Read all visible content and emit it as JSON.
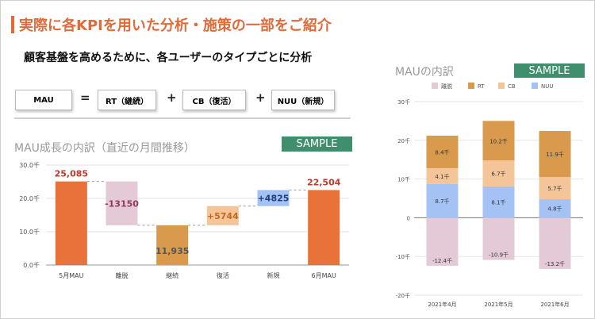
{
  "header": {
    "title": "実際に各KPIを用いた分析・施策の一部をご紹介",
    "subtitle": "顧客基盤を高めるために、各ユーザーのタイプごとに分析"
  },
  "formula": {
    "mau": "MAU",
    "equals": "=",
    "rt": "RT（継続）",
    "plus1": "+",
    "cb": "CB（復活）",
    "plus2": "+",
    "nuu": "NUU（新規）"
  },
  "left_panel": {
    "title": "MAU成長の内訳（直近の月間推移）",
    "badge": "SAMPLE"
  },
  "right_panel": {
    "title": "MAUの内訳",
    "badge": "SAMPLE"
  },
  "colors": {
    "orange": "#e8723a",
    "pink": "#e3cad6",
    "lightorange": "#f5c59a",
    "blue": "#a4c2f4",
    "brown": "#d99a4e",
    "green_badge": "#3f8f6f"
  },
  "chart_data": [
    {
      "type": "bar",
      "subtype": "waterfall",
      "categories": [
        "5月MAU",
        "離脱",
        "継続",
        "復活",
        "新規",
        "6月MAU"
      ],
      "values": [
        25085,
        -13150,
        11935,
        5744,
        4825,
        22504
      ],
      "data_labels": [
        "25,085",
        "-13150",
        "11,935",
        "+5744",
        "+4825",
        "22,504"
      ],
      "y_ticks": [
        "0.0千",
        "10.0千",
        "20.0千",
        "30.0千"
      ],
      "ylim": [
        0,
        30000
      ],
      "grid": true
    },
    {
      "type": "bar",
      "subtype": "stacked",
      "categories": [
        "2021年4月",
        "2021年5月",
        "2021年6月"
      ],
      "series": [
        {
          "name": "離脱",
          "values": [
            -12.4,
            -10.9,
            -13.2
          ],
          "labels": [
            "-12.4千",
            "-10.9千",
            "-13.2千"
          ]
        },
        {
          "name": "RT",
          "values": [
            8.4,
            10.2,
            11.9
          ],
          "labels": [
            "8.4千",
            "10.2千",
            "11.9千"
          ]
        },
        {
          "name": "CB",
          "values": [
            4.1,
            6.7,
            5.7
          ],
          "labels": [
            "4.1千",
            "6.7千",
            "5.7千"
          ]
        },
        {
          "name": "NUU",
          "values": [
            8.7,
            8.1,
            4.8
          ],
          "labels": [
            "8.7千",
            "8.1千",
            "4.8千"
          ]
        }
      ],
      "y_ticks": [
        "-20千",
        "-10千",
        "0",
        "10千",
        "20千",
        "30千"
      ],
      "ylim": [
        -20,
        30
      ],
      "legend": "top",
      "grid": true
    }
  ]
}
